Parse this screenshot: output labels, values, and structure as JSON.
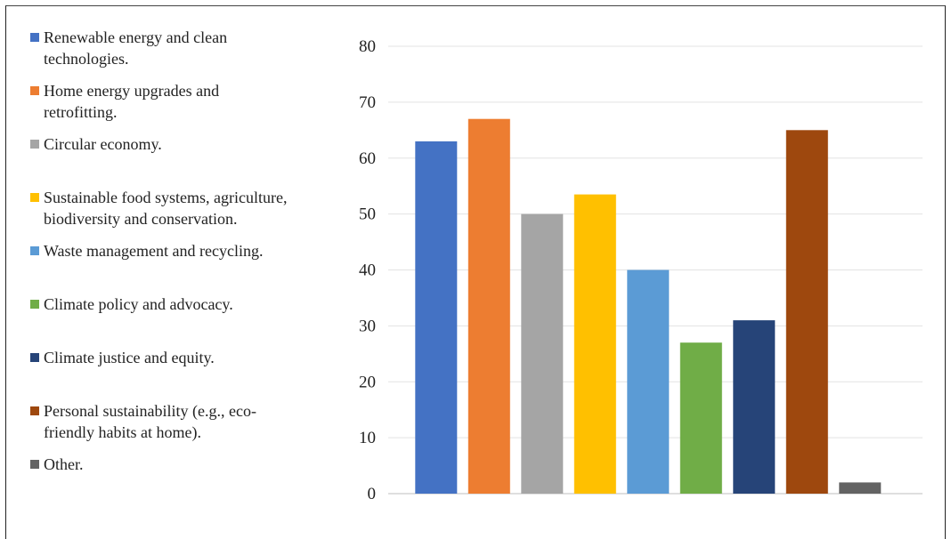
{
  "chart_data": {
    "type": "bar",
    "categories": [
      "Renewable energy and clean technologies.",
      "Home energy upgrades and retrofitting.",
      "Circular economy.",
      "Sustainable food systems, agriculture, biodiversity and conservation.",
      "Waste management and recycling.",
      "Climate policy and advocacy.",
      "Climate justice and equity.",
      "Personal sustainability (e.g., eco-friendly habits at home).",
      "Other."
    ],
    "values": [
      63,
      67,
      50,
      53.5,
      40,
      27,
      31,
      65,
      2
    ],
    "colors": [
      "#4472c4",
      "#ed7d31",
      "#a5a5a5",
      "#ffc000",
      "#5b9bd5",
      "#70ad47",
      "#264478",
      "#9e480e",
      "#636363"
    ],
    "ylim": [
      0,
      80
    ],
    "yticks": [
      "0",
      "10",
      "20",
      "30",
      "40",
      "50",
      "60",
      "70",
      "80"
    ],
    "grid": true,
    "legend_position": "left"
  }
}
